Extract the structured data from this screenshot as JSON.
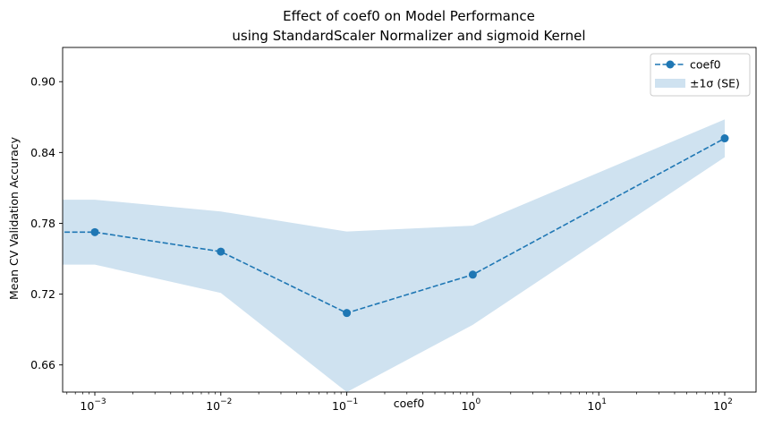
{
  "chart_data": {
    "type": "line",
    "title_line1": "Effect of coef0 on Model Performance",
    "title_line2": "using StandardScaler Normalizer and sigmoid Kernel",
    "xlabel": "coef0",
    "ylabel": "Mean CV Validation Accuracy",
    "xscale": "log",
    "xlim": [
      0,
      100
    ],
    "ylim": [
      0.637,
      0.929
    ],
    "x_ticks": [
      {
        "value": 0.001,
        "base": "10",
        "exp": "−3"
      },
      {
        "value": 0.01,
        "base": "10",
        "exp": "−2"
      },
      {
        "value": 0.1,
        "base": "10",
        "exp": "−1"
      },
      {
        "value": 1,
        "base": "10",
        "exp": "0"
      },
      {
        "value": 10,
        "base": "10",
        "exp": "1"
      },
      {
        "value": 100,
        "base": "10",
        "exp": "2"
      }
    ],
    "y_ticks": [
      "0.66",
      "0.72",
      "0.78",
      "0.84",
      "0.90"
    ],
    "series": [
      {
        "name": "coef0",
        "x": [
          0.0005,
          0.001,
          0.01,
          0.1,
          1,
          100
        ],
        "values": [
          0.7725,
          0.7725,
          0.756,
          0.704,
          0.7365,
          0.852
        ],
        "band_upper": [
          0.8,
          0.8,
          0.79,
          0.773,
          0.778,
          0.868
        ],
        "band_lower": [
          0.745,
          0.745,
          0.721,
          0.637,
          0.694,
          0.836
        ],
        "color": "#1f77b4",
        "style": "dashed",
        "marker": "circle"
      }
    ],
    "legend": {
      "placement": "top-right",
      "line_label": "coef0",
      "band_label": "±1σ (SE)"
    },
    "band_color": "#cfe2f0",
    "grid": false
  }
}
